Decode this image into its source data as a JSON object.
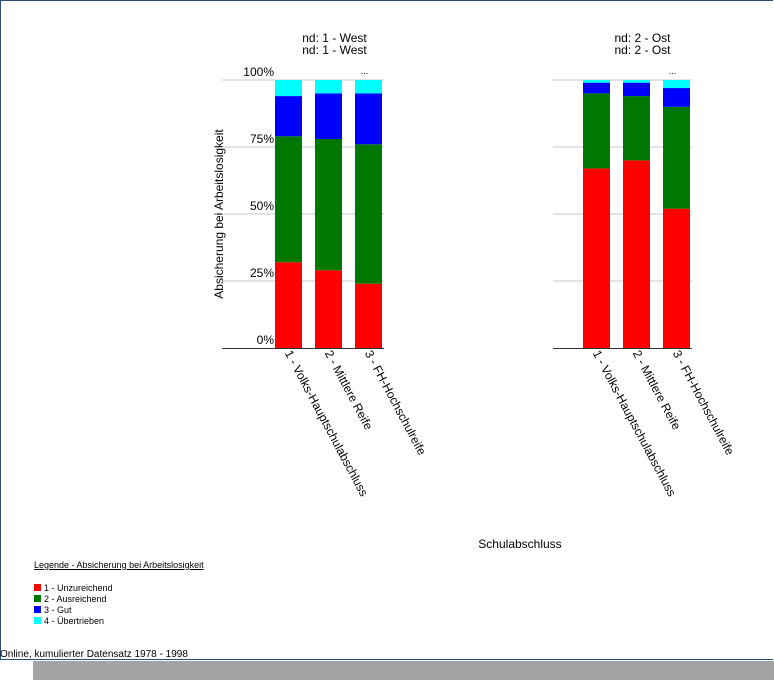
{
  "chart_data": {
    "type": "bar",
    "stacked": true,
    "normalized": true,
    "ylabel": "Absicherung bei Arbeitslosigkeit",
    "xlabel": "Schulabschluss",
    "yticks": [
      "0%",
      "25%",
      "50%",
      "75%",
      "100%"
    ],
    "ylim": [
      0,
      100
    ],
    "categories": [
      "1 - Volks-Hauptschulabschluss",
      "2 - Mittlere Reife",
      "3 - FH-Hochschulreife"
    ],
    "panels": [
      {
        "title_lines": [
          "nd: 1 - West",
          "nd: 1 - West"
        ],
        "ellipsis": "...",
        "series": [
          {
            "name": "1 - Unzureichend",
            "values": [
              32,
              29,
              24
            ]
          },
          {
            "name": "2 - Ausreichend",
            "values": [
              47,
              49,
              52
            ]
          },
          {
            "name": "3 - Gut",
            "values": [
              15,
              17,
              19
            ]
          },
          {
            "name": "4 - Übertrieben",
            "values": [
              6,
              5,
              5
            ]
          }
        ]
      },
      {
        "title_lines": [
          "nd: 2 - Ost",
          "nd: 2 - Ost"
        ],
        "ellipsis": "...",
        "series": [
          {
            "name": "1 - Unzureichend",
            "values": [
              67,
              70,
              52
            ]
          },
          {
            "name": "2 - Ausreichend",
            "values": [
              28,
              24,
              38
            ]
          },
          {
            "name": "3 - Gut",
            "values": [
              4,
              5,
              7
            ]
          },
          {
            "name": "4 - Übertrieben",
            "values": [
              1,
              1,
              3
            ]
          }
        ]
      }
    ],
    "colors": [
      "#ff0000",
      "#007700",
      "#0000ff",
      "#00ffff"
    ],
    "legend": {
      "title": "Legende - Absicherung bei Arbeitslosigkeit",
      "placement": "bottom-left",
      "entries": [
        "1 - Unzureichend",
        "2 - Ausreichend",
        "3 - Gut",
        "4 - Übertrieben"
      ]
    }
  },
  "footer": "Online, kumulierter Datensatz 1978 - 1998"
}
